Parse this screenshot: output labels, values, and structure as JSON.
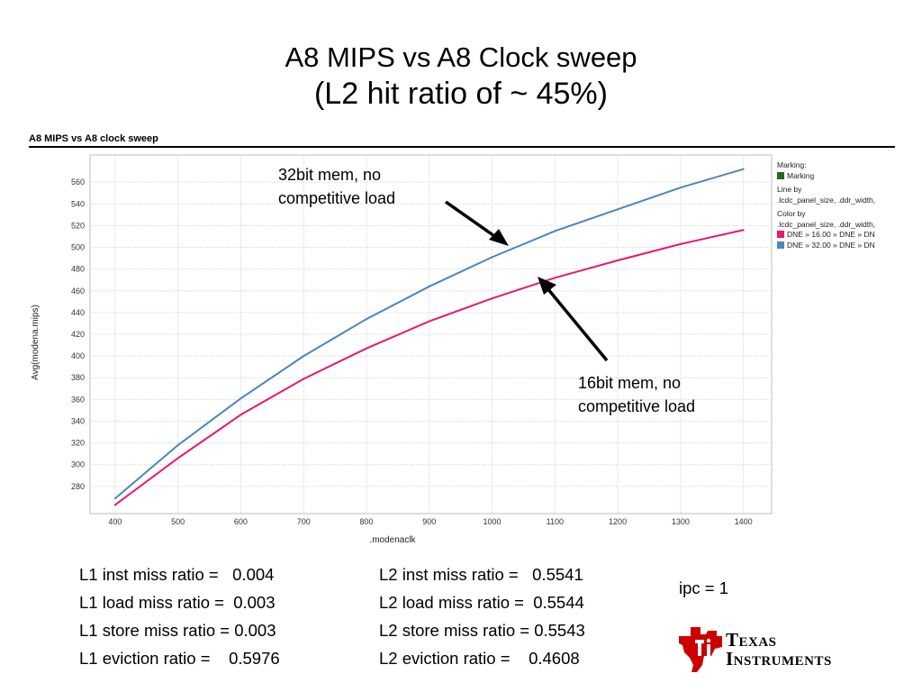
{
  "slide": {
    "title_line1": "A8 MIPS vs A8 Clock sweep",
    "title_line2": "(L2 hit ratio of ~ 45%)"
  },
  "chart_data": {
    "type": "line",
    "title": "A8 MIPS vs A8 clock sweep",
    "xlabel": ".modenaclk",
    "ylabel": "Avg(modena.mips)",
    "x": [
      400,
      500,
      600,
      700,
      800,
      900,
      1000,
      1100,
      1200,
      1300,
      1400
    ],
    "xticks": [
      400,
      500,
      600,
      700,
      800,
      900,
      1000,
      1100,
      1200,
      1300,
      1400
    ],
    "yticks": [
      280,
      300,
      320,
      340,
      360,
      380,
      400,
      420,
      440,
      460,
      480,
      500,
      520,
      540,
      560
    ],
    "xlim": [
      360,
      1445
    ],
    "ylim": [
      255,
      585
    ],
    "grid": true,
    "series": [
      {
        "name": "DNE » 16.00 » DNE » DN",
        "color": "#e8186e",
        "values": [
          263,
          306,
          346,
          379,
          407,
          432,
          453,
          472,
          488,
          503,
          516
        ]
      },
      {
        "name": "DNE » 32.00 » DNE » DN",
        "color": "#4a86c0",
        "values": [
          269,
          318,
          361,
          400,
          434,
          464,
          491,
          515,
          535,
          555,
          572
        ]
      }
    ],
    "legend": {
      "marking_title": "Marking:",
      "marking_item": "Marking",
      "marking_color": "#1e6b1e",
      "line_by_title": "Line by",
      "line_by_value": ".lcdc_panel_size, .ddr_width,",
      "color_by_title": "Color by",
      "color_by_value": ".lcdc_panel_size, .ddr_width,",
      "placement": "right"
    },
    "annotations": [
      {
        "line1": "32bit mem, no",
        "line2": "competitive load"
      },
      {
        "line1": "16bit mem, no",
        "line2": "competitive load"
      }
    ]
  },
  "stats": {
    "l1": [
      {
        "label": "L1 inst miss ratio =",
        "value": "0.004"
      },
      {
        "label": "L1 load miss ratio =",
        "value": "0.003"
      },
      {
        "label": "L1 store miss ratio =",
        "value": "0.003"
      },
      {
        "label": "L1 eviction ratio =",
        "value": "0.5976"
      }
    ],
    "l2": [
      {
        "label": "L2 inst miss ratio =",
        "value": "0.5541"
      },
      {
        "label": "L2 load miss ratio =",
        "value": "0.5544"
      },
      {
        "label": "L2 store miss ratio =",
        "value": "0.5543"
      },
      {
        "label": "L2 eviction ratio =",
        "value": "0.4608"
      }
    ],
    "ipc": "ipc = 1"
  },
  "logo": {
    "word1": "Texas",
    "word2": "Instruments",
    "color": "#cc0000"
  }
}
